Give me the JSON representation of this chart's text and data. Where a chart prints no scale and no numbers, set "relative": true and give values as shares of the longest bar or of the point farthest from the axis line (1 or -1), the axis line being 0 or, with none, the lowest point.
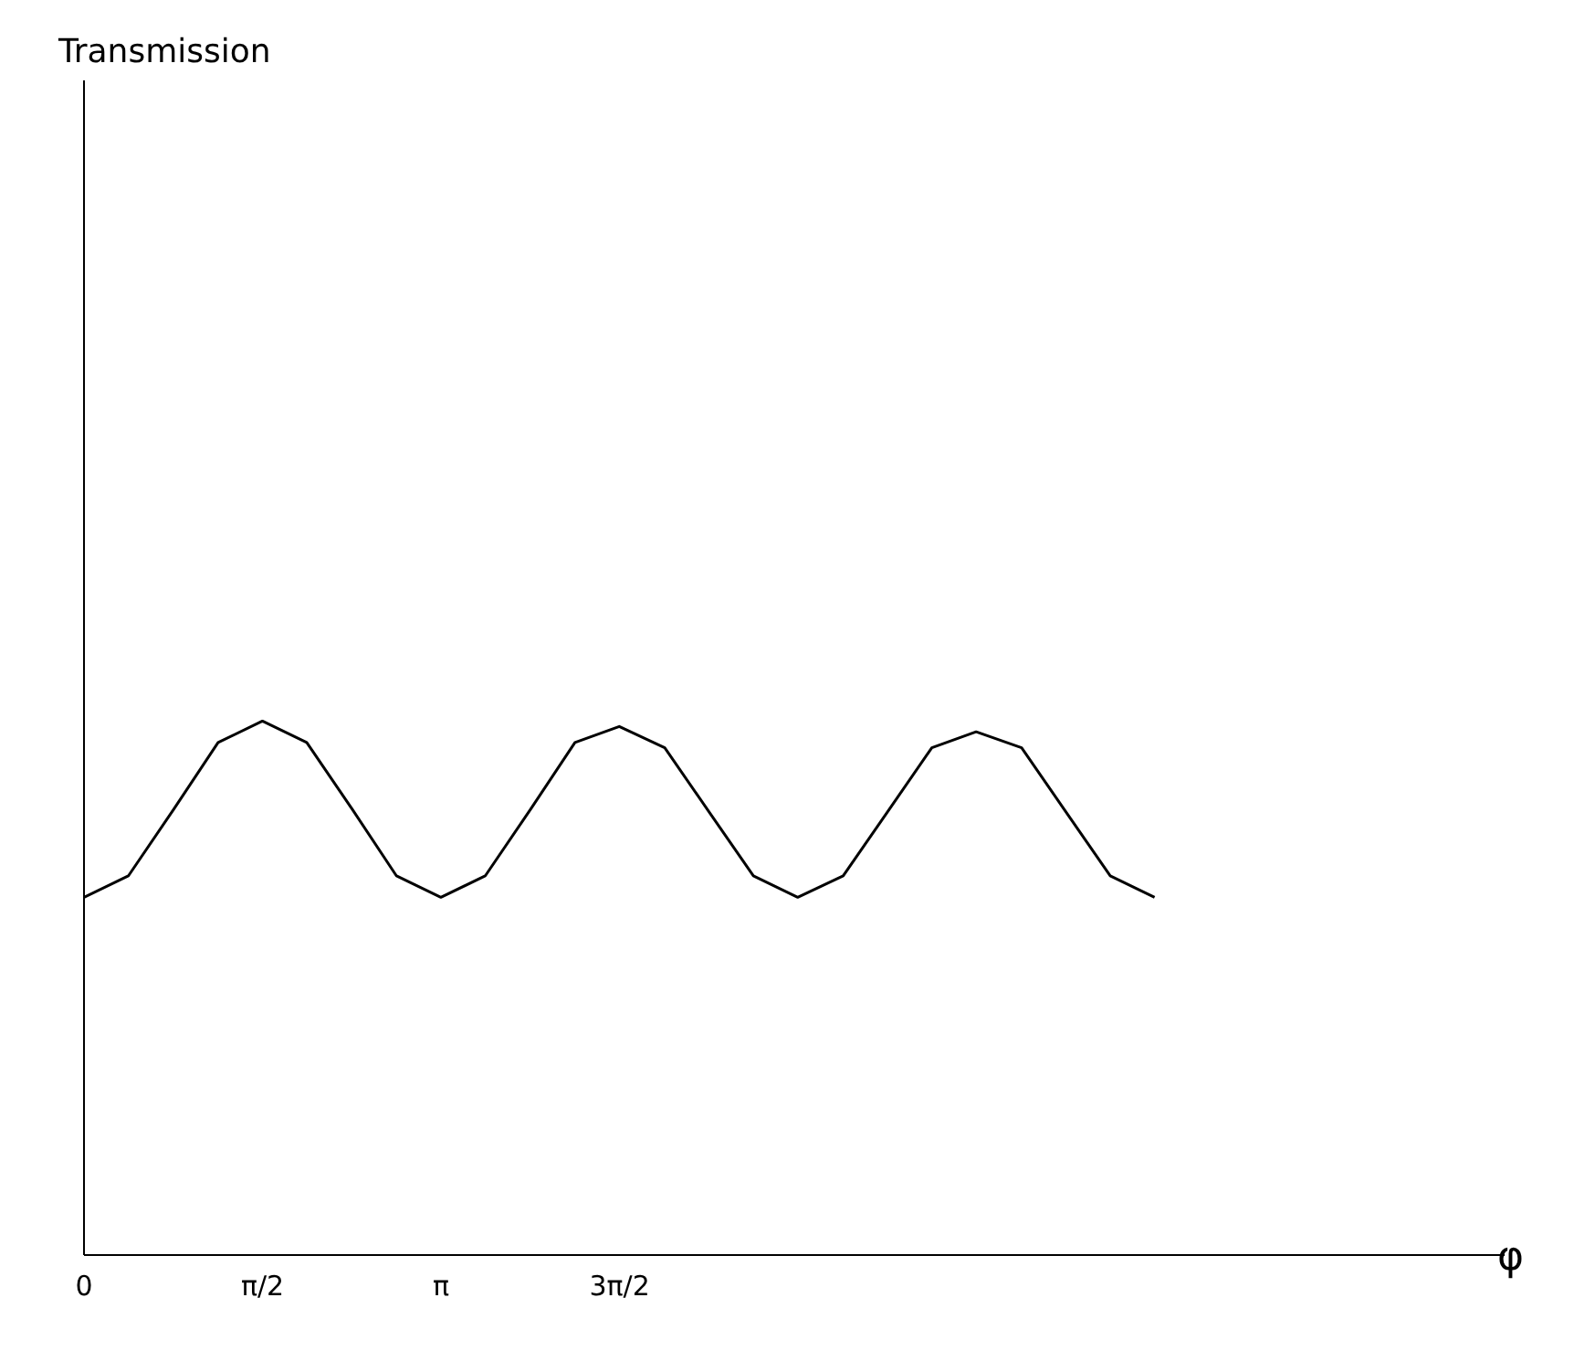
{
  "chart_data": {
    "type": "line",
    "relative": true,
    "annotations": [
      "Transmission"
    ],
    "xlabel": "φ",
    "x": [
      0,
      0.39,
      0.79,
      1.18,
      1.57,
      1.96,
      2.36,
      2.75,
      3.14,
      3.53,
      3.93,
      4.32,
      4.71,
      5.11,
      5.5,
      5.89,
      6.28,
      6.68,
      7.07,
      7.46,
      7.85,
      8.25,
      8.64,
      9.03,
      9.42
    ],
    "series": [
      {
        "color": "#000000",
        "values": [
          0.67,
          0.71,
          0.835,
          0.96,
          1.0,
          0.96,
          0.835,
          0.71,
          0.67,
          0.71,
          0.835,
          0.96,
          0.99,
          0.95,
          0.83,
          0.71,
          0.67,
          0.71,
          0.83,
          0.95,
          0.98,
          0.95,
          0.83,
          0.71,
          0.67
        ]
      }
    ],
    "xlim": [
      0,
      12.5
    ],
    "xticks": [
      0,
      {
        "value": 1.5708,
        "label": "π/2"
      },
      {
        "value": 3.1416,
        "label": "π"
      },
      {
        "value": 4.7124,
        "label": "3π/2"
      }
    ],
    "grid": false,
    "legend": false,
    "marker": "none",
    "line_style": "solid"
  }
}
